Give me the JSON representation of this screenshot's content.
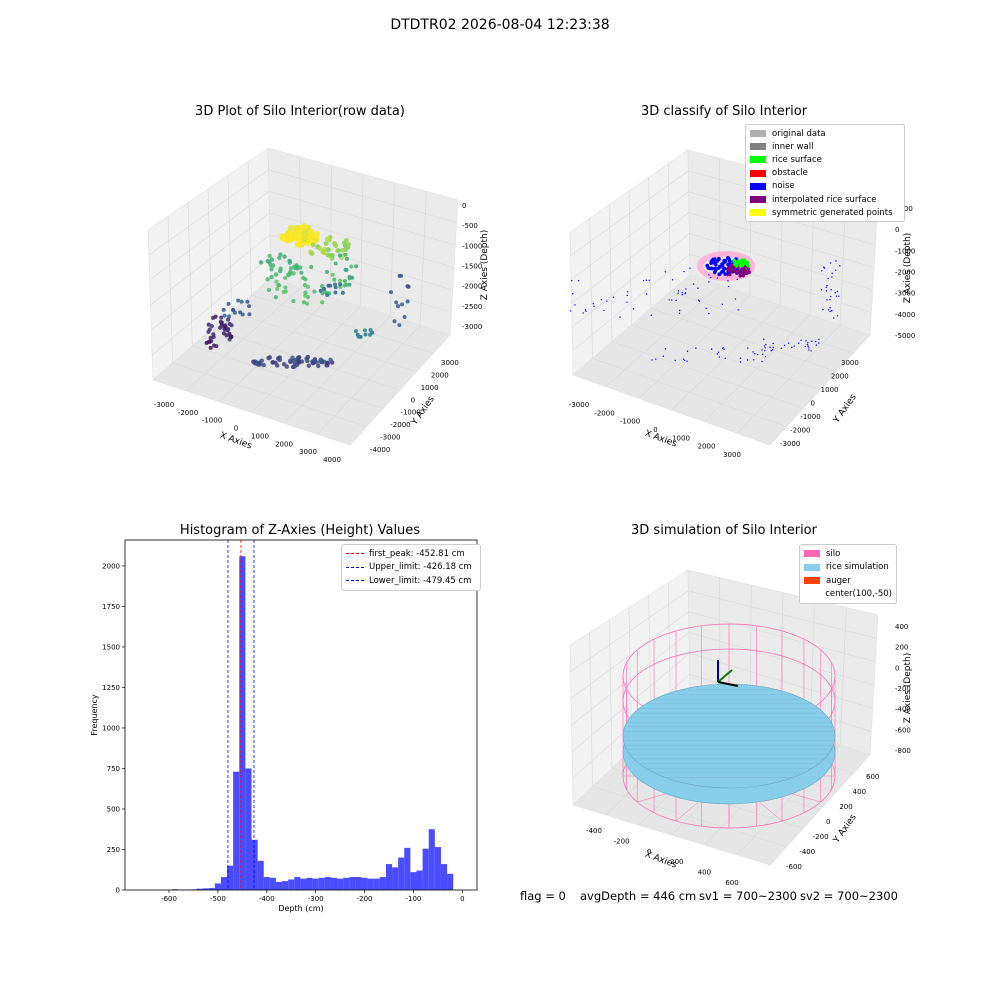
{
  "figure": {
    "suptitle": "DTDTR02 2026-08-04 12:23:38",
    "footer": {
      "flag": "flag = 0",
      "avg_depth": "avgDepth = 446 cm",
      "sv1": "sv1 = 700~2300",
      "sv2": "sv2 = 700~2300"
    }
  },
  "chart_data": [
    {
      "type": "scatter",
      "projection": "3d",
      "title": "3D Plot of Silo Interior(row data)",
      "xlabel": "X Axies",
      "ylabel": "Y Axies",
      "zlabel": "Z Axies (Depth)",
      "x_ticks": [
        "-3000",
        "-2000",
        "-1000",
        "0",
        "1000",
        "2000",
        "3000",
        "4000"
      ],
      "y_ticks": [
        "-4000",
        "-3000",
        "-2000",
        "-1000",
        "0",
        "1000",
        "2000",
        "3000"
      ],
      "z_ticks": [
        "0",
        "-500",
        "-1000",
        "-1500",
        "-2000",
        "-2500",
        "-3000"
      ],
      "colormap": "viridis",
      "colors": {
        "low": "#440154",
        "mid": "#21918c",
        "high": "#fde725"
      }
    },
    {
      "type": "scatter",
      "projection": "3d",
      "title": "3D classify of Silo Interior",
      "xlabel": "X Axies",
      "ylabel": "Y Axies",
      "zlabel": "Z Axies (Depth)",
      "x_ticks": [
        "-3000",
        "-2000",
        "-1000",
        "0",
        "1000",
        "2000",
        "3000"
      ],
      "y_ticks": [
        "-3000",
        "-2000",
        "-1000",
        "0",
        "1000",
        "2000",
        "3000"
      ],
      "z_ticks": [
        "1000",
        "0",
        "-1000",
        "-2000",
        "-3000",
        "-4000",
        "-5000"
      ],
      "legend_position": "top-right",
      "legend": [
        {
          "label": "original data",
          "color": "#b0b0b0"
        },
        {
          "label": "inner wall",
          "color": "#808080"
        },
        {
          "label": "rice surface",
          "color": "#00ff00"
        },
        {
          "label": "obstacle",
          "color": "#ff0000"
        },
        {
          "label": "noise",
          "color": "#0000ff"
        },
        {
          "label": "interpolated rice surface",
          "color": "#800080"
        },
        {
          "label": "symmetric generated points",
          "color": "#ffff00"
        }
      ]
    },
    {
      "type": "bar",
      "title": "Histogram of Z-Axies (Height) Values",
      "xlabel": "Depth (cm)",
      "ylabel": "Frequency",
      "xlim": [
        -690,
        30
      ],
      "ylim": [
        0,
        2160
      ],
      "x_ticks": [
        -600,
        -500,
        -400,
        -300,
        -200,
        -100,
        0
      ],
      "y_ticks": [
        0,
        250,
        500,
        750,
        1000,
        1250,
        1500,
        1750,
        2000
      ],
      "bin_width": 12.5,
      "bar_color": "#4b4bff",
      "bins": [
        {
          "x": -587.5,
          "y": 5
        },
        {
          "x": -575,
          "y": 3
        },
        {
          "x": -562.5,
          "y": 2
        },
        {
          "x": -550,
          "y": 4
        },
        {
          "x": -537.5,
          "y": 8
        },
        {
          "x": -525,
          "y": 10
        },
        {
          "x": -512.5,
          "y": 12
        },
        {
          "x": -500,
          "y": 40
        },
        {
          "x": -487.5,
          "y": 80
        },
        {
          "x": -475,
          "y": 150
        },
        {
          "x": -462.5,
          "y": 730
        },
        {
          "x": -450,
          "y": 2060
        },
        {
          "x": -437.5,
          "y": 750
        },
        {
          "x": -425,
          "y": 310
        },
        {
          "x": -412.5,
          "y": 180
        },
        {
          "x": -400,
          "y": 80
        },
        {
          "x": -387.5,
          "y": 75
        },
        {
          "x": -375,
          "y": 50
        },
        {
          "x": -362.5,
          "y": 55
        },
        {
          "x": -350,
          "y": 65
        },
        {
          "x": -337.5,
          "y": 80
        },
        {
          "x": -325,
          "y": 70
        },
        {
          "x": -312.5,
          "y": 75
        },
        {
          "x": -300,
          "y": 70
        },
        {
          "x": -287.5,
          "y": 75
        },
        {
          "x": -275,
          "y": 80
        },
        {
          "x": -262.5,
          "y": 75
        },
        {
          "x": -250,
          "y": 70
        },
        {
          "x": -237.5,
          "y": 75
        },
        {
          "x": -225,
          "y": 80
        },
        {
          "x": -212.5,
          "y": 80
        },
        {
          "x": -200,
          "y": 75
        },
        {
          "x": -187.5,
          "y": 70
        },
        {
          "x": -175,
          "y": 70
        },
        {
          "x": -162.5,
          "y": 80
        },
        {
          "x": -150,
          "y": 160
        },
        {
          "x": -137.5,
          "y": 140
        },
        {
          "x": -125,
          "y": 200
        },
        {
          "x": -112.5,
          "y": 260
        },
        {
          "x": -100,
          "y": 110
        },
        {
          "x": -87.5,
          "y": 120
        },
        {
          "x": -75,
          "y": 255
        },
        {
          "x": -62.5,
          "y": 375
        },
        {
          "x": -50,
          "y": 265
        },
        {
          "x": -37.5,
          "y": 160
        },
        {
          "x": -25,
          "y": 100
        }
      ],
      "lines": [
        {
          "label": "first_peak: -452.81 cm",
          "x": -452.81,
          "color": "#ff0000",
          "style": "dashed"
        },
        {
          "label": "Upper_limit: -426.18 cm",
          "x": -426.18,
          "color": "#0000ff",
          "style": "dashed"
        },
        {
          "label": "Lower_limit: -479.45 cm",
          "x": -479.45,
          "color": "#0000ff",
          "style": "dashed"
        }
      ],
      "legend_position": "top-right"
    },
    {
      "type": "scatter",
      "projection": "3d",
      "title": "3D simulation of Silo Interior",
      "xlabel": "X Axies",
      "ylabel": "Y Axies",
      "zlabel": "Z Axies (Depth)",
      "x_ticks": [
        "-400",
        "-200",
        "0",
        "200",
        "400",
        "600"
      ],
      "y_ticks": [
        "-600",
        "-400",
        "-200",
        "0",
        "200",
        "400",
        "600"
      ],
      "z_ticks": [
        "400",
        "200",
        "0",
        "-200",
        "-400",
        "-600",
        "-800"
      ],
      "legend_position": "top-right",
      "legend": [
        {
          "label": "silo",
          "color": "#ff69b4"
        },
        {
          "label": "rice simulation",
          "color": "#87ceeb"
        },
        {
          "label": "auger",
          "color": "#ff4500"
        },
        {
          "label": "center(100,-50)",
          "color": ""
        }
      ]
    }
  ]
}
